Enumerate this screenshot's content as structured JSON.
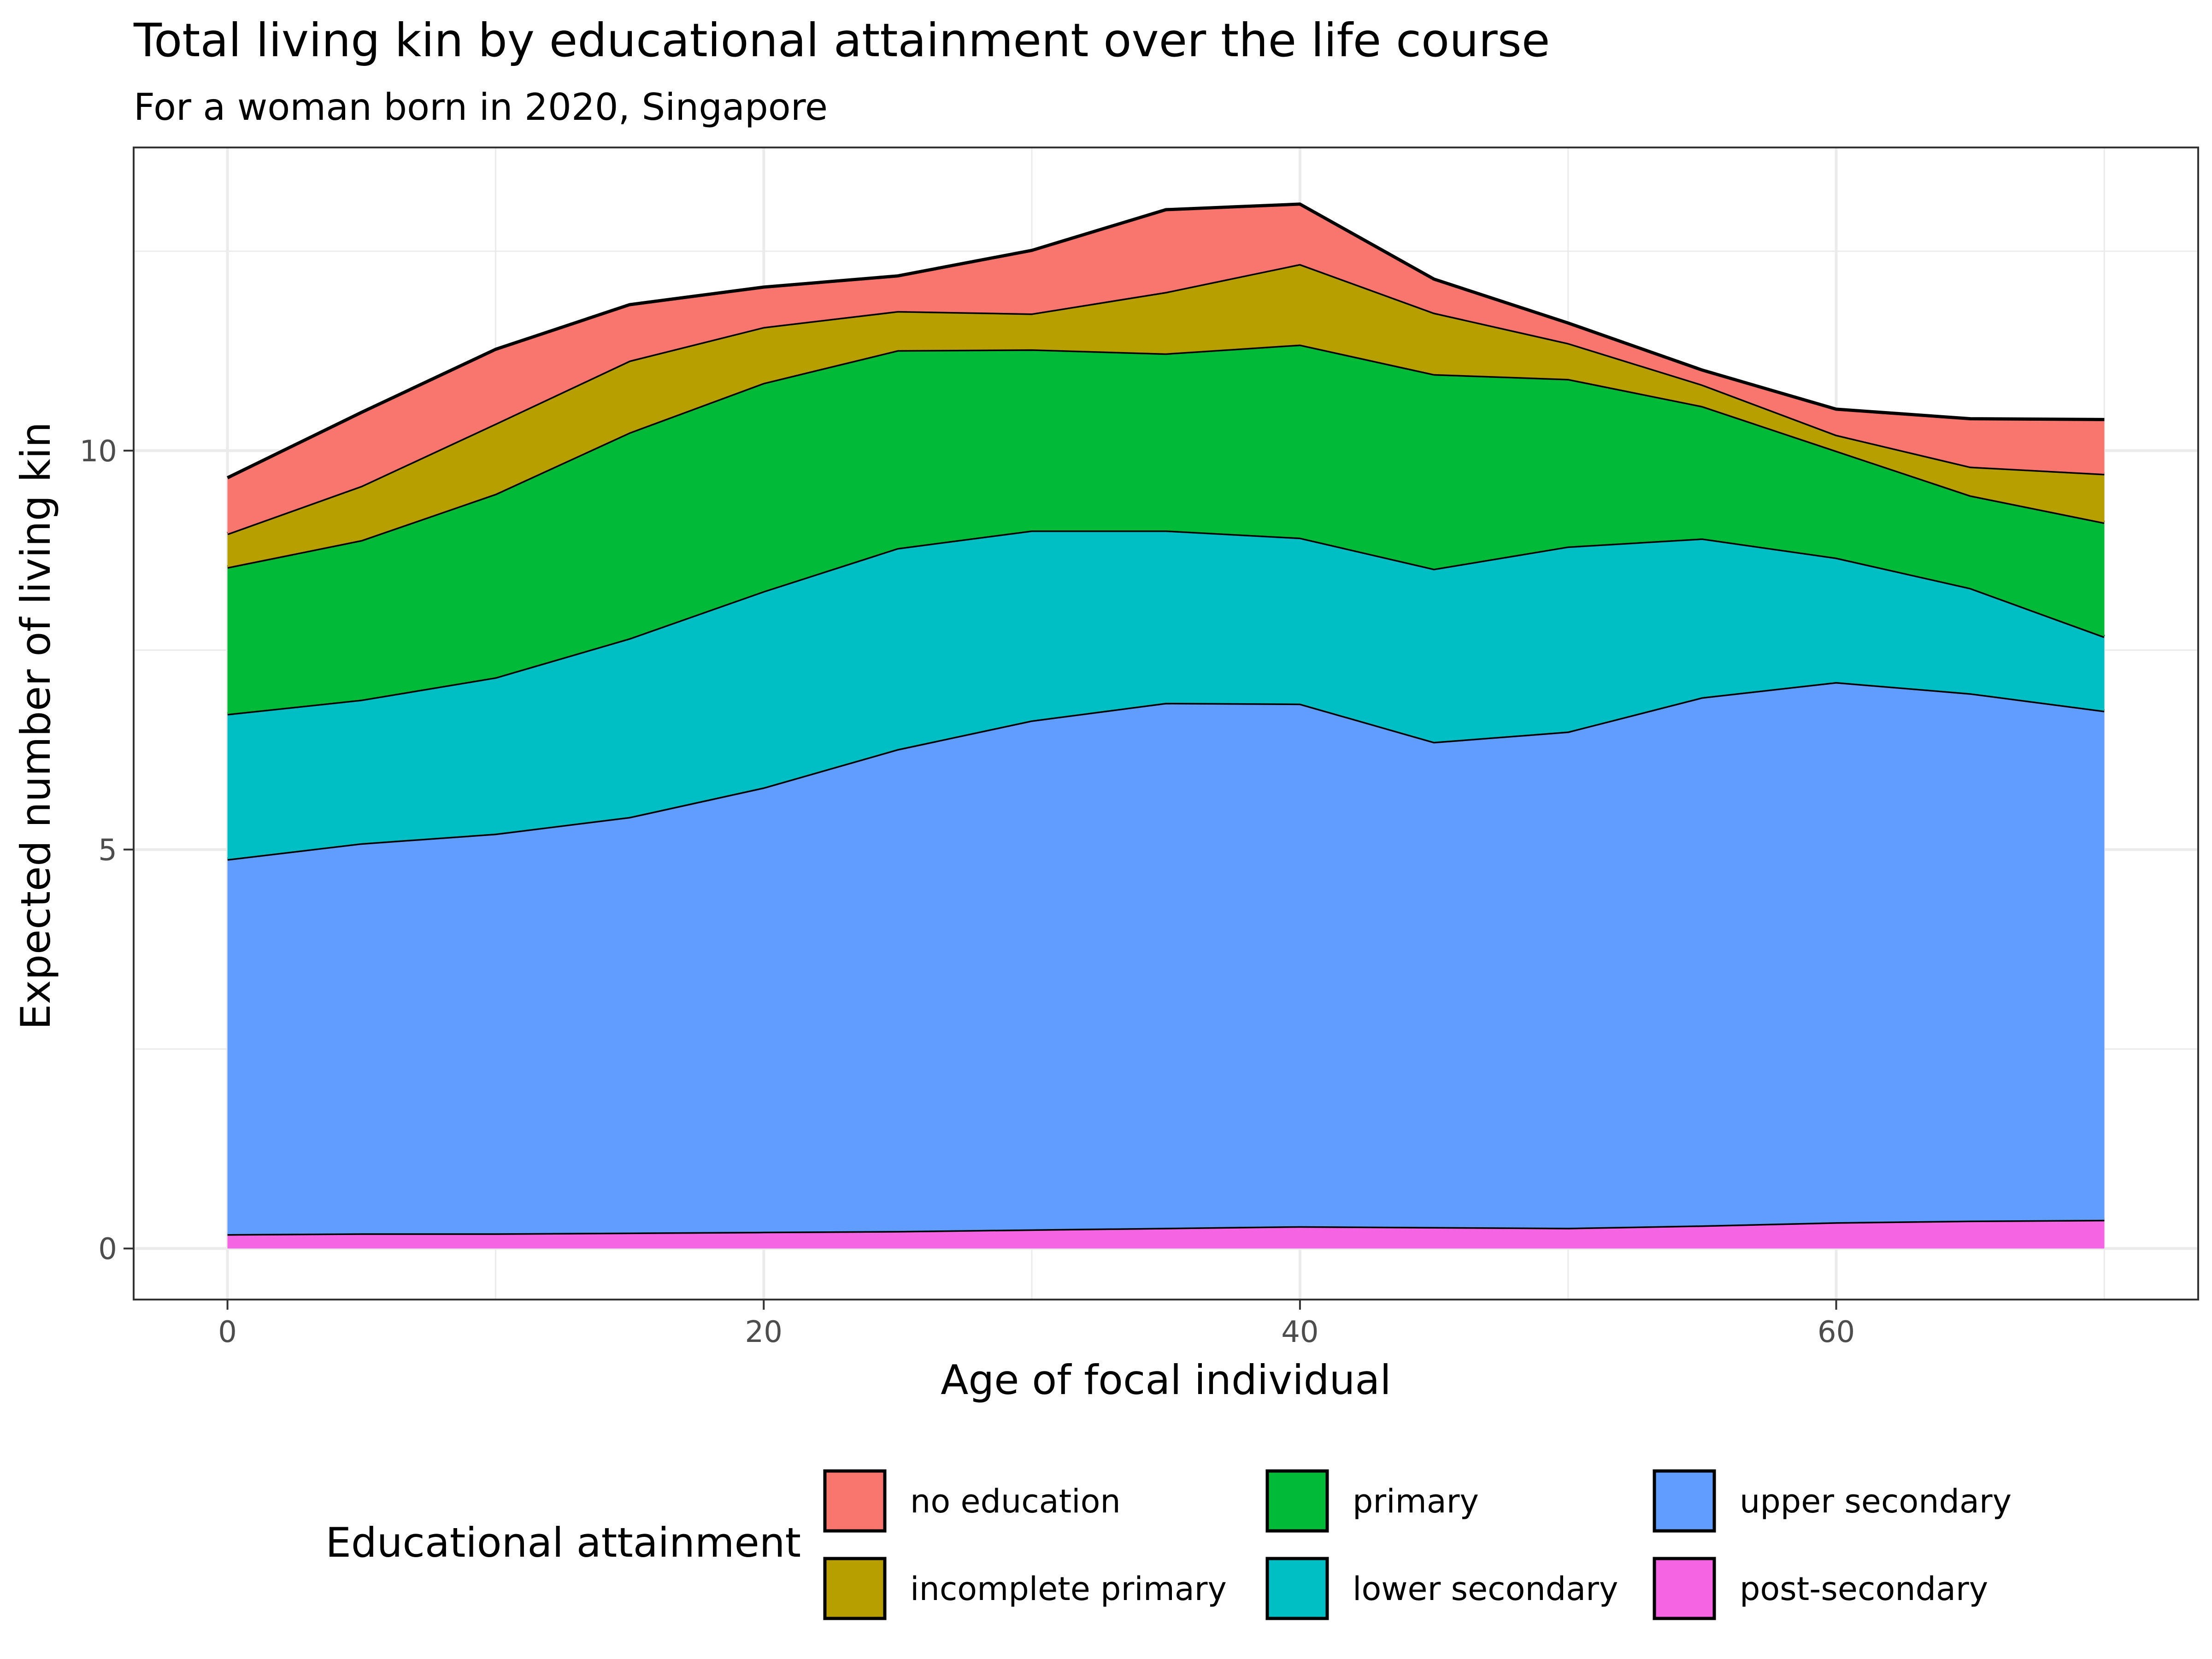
{
  "chart_data": {
    "type": "area",
    "stacked": true,
    "title": "Total living kin by educational attainment over the life course",
    "subtitle": "For a woman born in 2020, Singapore",
    "xlabel": "Age of focal individual",
    "ylabel": "Expected number of living kin",
    "xlim": [
      -3.5,
      73.5
    ],
    "ylim": [
      -0.64,
      13.8
    ],
    "x_ticks": [
      0,
      20,
      40,
      60
    ],
    "x_tick_labels": [
      "0",
      "20",
      "40",
      "60"
    ],
    "y_ticks": [
      0,
      5,
      10
    ],
    "y_tick_labels": [
      "0",
      "5",
      "10"
    ],
    "grid": true,
    "legend": {
      "title": "Educational attainment",
      "position": "bottom"
    },
    "x": [
      0,
      5,
      10,
      15,
      20,
      25,
      30,
      35,
      40,
      45,
      50,
      55,
      60,
      65,
      70
    ],
    "series": [
      {
        "name": "post-secondary",
        "color": "#f564e3",
        "values": [
          0.18,
          0.19,
          0.19,
          0.2,
          0.21,
          0.22,
          0.24,
          0.26,
          0.28,
          0.27,
          0.26,
          0.29,
          0.33,
          0.35,
          0.36
        ]
      },
      {
        "name": "upper secondary",
        "color": "#619cff",
        "values": [
          4.7,
          4.89,
          5.01,
          5.21,
          5.57,
          6.04,
          6.38,
          6.58,
          6.55,
          6.08,
          6.22,
          6.62,
          6.77,
          6.61,
          6.38
        ]
      },
      {
        "name": "lower secondary",
        "color": "#00bfc4",
        "values": [
          1.82,
          1.8,
          1.96,
          2.24,
          2.46,
          2.52,
          2.38,
          2.16,
          2.08,
          2.17,
          2.32,
          1.99,
          1.56,
          1.32,
          0.93
        ]
      },
      {
        "name": "primary",
        "color": "#00ba38",
        "values": [
          1.84,
          2.0,
          2.3,
          2.58,
          2.61,
          2.48,
          2.27,
          2.22,
          2.42,
          2.44,
          2.1,
          1.66,
          1.34,
          1.16,
          1.43
        ]
      },
      {
        "name": "incomplete primary",
        "color": "#b79f00",
        "values": [
          0.42,
          0.68,
          0.88,
          0.9,
          0.7,
          0.49,
          0.45,
          0.77,
          1.01,
          0.77,
          0.45,
          0.27,
          0.2,
          0.36,
          0.61
        ]
      },
      {
        "name": "no education",
        "color": "#f8766d",
        "values": [
          0.7,
          0.92,
          0.93,
          0.7,
          0.5,
          0.44,
          0.79,
          1.03,
          0.75,
          0.42,
          0.25,
          0.18,
          0.32,
          0.6,
          0.68
        ]
      }
    ],
    "legend_order": [
      "no education",
      "incomplete primary",
      "primary",
      "lower secondary",
      "upper secondary",
      "post-secondary"
    ]
  }
}
